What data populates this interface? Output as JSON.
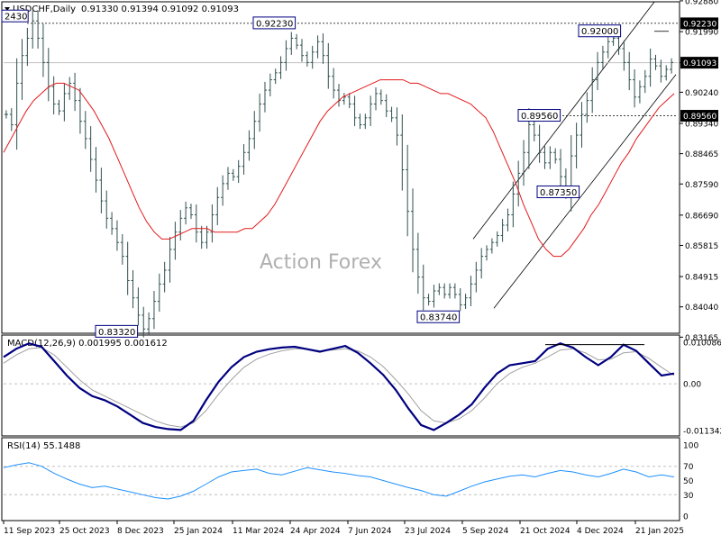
{
  "header": {
    "title": "USDCHF,Daily",
    "ohlc": "0.91330 0.91394 0.91092 0.91093"
  },
  "watermark": "Action Forex",
  "colors": {
    "bar": "#2f4f4f",
    "ma": "#e31a1c",
    "macd": "#000080",
    "macd_signal": "#a0a0a0",
    "rsi": "#1e90ff",
    "grid": "#c0c0c0",
    "frame": "#000000",
    "price_tag_bg": "#000000",
    "price_tag_text": "#ffffff",
    "annotation_border": "#000080"
  },
  "chart_data": [
    {
      "type": "ohlc",
      "title": "USDCHF,Daily",
      "series": [
        {
          "name": "USDCHF",
          "values": [
            0.896,
            0.893,
            0.905,
            0.913,
            0.918,
            0.923,
            0.918,
            0.911,
            0.904,
            0.899,
            0.897,
            0.902,
            0.905,
            0.9,
            0.894,
            0.889,
            0.883,
            0.877,
            0.871,
            0.866,
            0.863,
            0.859,
            0.855,
            0.848,
            0.843,
            0.838,
            0.834,
            0.837,
            0.842,
            0.847,
            0.851,
            0.857,
            0.862,
            0.866,
            0.869,
            0.867,
            0.862,
            0.859,
            0.862,
            0.867,
            0.872,
            0.876,
            0.879,
            0.878,
            0.881,
            0.885,
            0.889,
            0.894,
            0.899,
            0.903,
            0.906,
            0.908,
            0.911,
            0.915,
            0.918,
            0.916,
            0.913,
            0.911,
            0.914,
            0.917,
            0.913,
            0.907,
            0.903,
            0.9,
            0.901,
            0.899,
            0.895,
            0.893,
            0.895,
            0.899,
            0.902,
            0.9,
            0.897,
            0.895,
            0.89,
            0.88,
            0.868,
            0.857,
            0.849,
            0.843,
            0.842,
            0.845,
            0.846,
            0.844,
            0.846,
            0.844,
            0.841,
            0.843,
            0.847,
            0.851,
            0.855,
            0.857,
            0.859,
            0.861,
            0.864,
            0.867,
            0.873,
            0.879,
            0.885,
            0.893,
            0.89,
            0.885,
            0.882,
            0.885,
            0.883,
            0.878,
            0.874,
            0.884,
            0.89,
            0.896,
            0.9,
            0.906,
            0.911,
            0.914,
            0.917,
            0.918,
            0.915,
            0.911,
            0.906,
            0.901,
            0.904,
            0.907,
            0.912,
            0.91,
            0.907,
            0.909,
            0.911
          ]
        },
        {
          "name": "MA",
          "values": [
            0.885,
            0.889,
            0.893,
            0.897,
            0.9,
            0.902,
            0.904,
            0.905,
            0.905,
            0.904,
            0.903,
            0.9,
            0.897,
            0.893,
            0.889,
            0.884,
            0.879,
            0.874,
            0.869,
            0.865,
            0.862,
            0.86,
            0.86,
            0.861,
            0.862,
            0.863,
            0.863,
            0.863,
            0.862,
            0.862,
            0.862,
            0.862,
            0.863,
            0.863,
            0.865,
            0.867,
            0.87,
            0.874,
            0.878,
            0.882,
            0.886,
            0.89,
            0.894,
            0.897,
            0.899,
            0.901,
            0.902,
            0.903,
            0.904,
            0.905,
            0.906,
            0.906,
            0.906,
            0.906,
            0.905,
            0.905,
            0.904,
            0.903,
            0.902,
            0.902,
            0.901,
            0.9,
            0.899,
            0.897,
            0.895,
            0.891,
            0.886,
            0.881,
            0.876,
            0.87,
            0.865,
            0.86,
            0.857,
            0.855,
            0.855,
            0.857,
            0.86,
            0.863,
            0.867,
            0.87,
            0.874,
            0.878,
            0.882,
            0.885,
            0.889,
            0.892,
            0.895,
            0.898,
            0.9,
            0.902
          ]
        }
      ],
      "ylim": [
        0.8333,
        0.928
      ],
      "yticks": [
        "0.92880",
        "0.91990",
        "0.91093",
        "0.90240",
        "0.89340",
        "0.88465",
        "0.87590",
        "0.86690",
        "0.85815",
        "0.84915",
        "0.84040",
        "0.83165"
      ],
      "price_tags": [
        {
          "label": "0.92230",
          "value": 0.9223
        },
        {
          "label": "0.91093",
          "value": 0.91093
        },
        {
          "label": "0.89560",
          "value": 0.8956
        }
      ],
      "annotations": [
        {
          "label": "2430",
          "value": 0.9243,
          "at": "left edge"
        },
        {
          "label": "0.92230",
          "value": 0.9223,
          "at": "24 Apr 2024"
        },
        {
          "label": "0.92000",
          "value": 0.92,
          "at": "4 Dec 2024"
        },
        {
          "label": "0.89560",
          "value": 0.8956,
          "at": "21 Oct 2024"
        },
        {
          "label": "0.87350",
          "value": 0.8735,
          "at": "4 Dec 2024"
        },
        {
          "label": "0.83320",
          "value": 0.8332,
          "at": "8 Dec 2023"
        },
        {
          "label": "0.83740",
          "value": 0.8374,
          "at": "5 Sep 2024"
        }
      ]
    },
    {
      "type": "line",
      "title": "MACD(12,26,9) 0.001995 0.001612",
      "series": [
        {
          "name": "MACD",
          "values": [
            0.0065,
            0.0085,
            0.0098,
            0.009,
            0.0055,
            0.002,
            -0.001,
            -0.003,
            -0.004,
            -0.0055,
            -0.0075,
            -0.0095,
            -0.0105,
            -0.011,
            -0.0112,
            -0.009,
            -0.004,
            0.0005,
            0.004,
            0.0065,
            0.0078,
            0.0084,
            0.0088,
            0.009,
            0.0084,
            0.0078,
            0.0085,
            0.0092,
            0.0075,
            0.005,
            0.0022,
            -0.0015,
            -0.006,
            -0.01,
            -0.0112,
            -0.0095,
            -0.0075,
            -0.005,
            -0.001,
            0.0025,
            0.0045,
            0.005,
            0.0055,
            0.0085,
            0.0098,
            0.0088,
            0.0065,
            0.0045,
            0.0065,
            0.0095,
            0.008,
            0.005,
            0.002,
            0.0025
          ]
        },
        {
          "name": "Signal",
          "values": [
            0.005,
            0.007,
            0.0085,
            0.0088,
            0.007,
            0.004,
            0.001,
            -0.0015,
            -0.003,
            -0.0045,
            -0.006,
            -0.0075,
            -0.009,
            -0.01,
            -0.0105,
            -0.0095,
            -0.0065,
            -0.0025,
            0.001,
            0.004,
            0.006,
            0.0072,
            0.008,
            0.0085,
            0.0085,
            0.008,
            0.0082,
            0.0085,
            0.008,
            0.0065,
            0.0042,
            0.001,
            -0.0025,
            -0.0065,
            -0.009,
            -0.0095,
            -0.0085,
            -0.0065,
            -0.0035,
            0.0,
            0.0025,
            0.004,
            0.005,
            0.0065,
            0.0082,
            0.0085,
            0.0075,
            0.0058,
            0.006,
            0.0075,
            0.0078,
            0.0062,
            0.004,
            0.002
          ]
        }
      ],
      "ylim": [
        -0.011342,
        0.010086
      ],
      "yticks": [
        "0.010086",
        "0.00",
        "-0.011342"
      ]
    },
    {
      "type": "line",
      "title": "RSI(14) 55.1488",
      "series": [
        {
          "name": "RSI",
          "values": [
            68,
            72,
            75,
            70,
            60,
            52,
            45,
            40,
            42,
            38,
            34,
            30,
            26,
            24,
            28,
            35,
            45,
            55,
            62,
            64,
            66,
            60,
            58,
            63,
            68,
            65,
            62,
            60,
            57,
            55,
            50,
            45,
            40,
            36,
            30,
            28,
            35,
            42,
            48,
            52,
            56,
            58,
            55,
            60,
            64,
            62,
            58,
            55,
            60,
            66,
            62,
            55,
            58,
            55
          ]
        }
      ],
      "ylim": [
        0,
        100
      ],
      "yticks": [
        "100",
        "70",
        "50",
        "30",
        "0"
      ]
    }
  ],
  "x_axis": {
    "labels": [
      "11 Sep 2023",
      "25 Oct 2023",
      "8 Dec 2023",
      "25 Jan 2024",
      "11 Mar 2024",
      "24 Apr 2024",
      "7 Jun 2024",
      "23 Jul 2024",
      "5 Sep 2024",
      "21 Oct 2024",
      "4 Dec 2024",
      "21 Jan 2025"
    ]
  },
  "macd_panel": {
    "title": "MACD(12,26,9) 0.001995 0.001612"
  },
  "rsi_panel": {
    "title": "RSI(14) 55.1488"
  }
}
